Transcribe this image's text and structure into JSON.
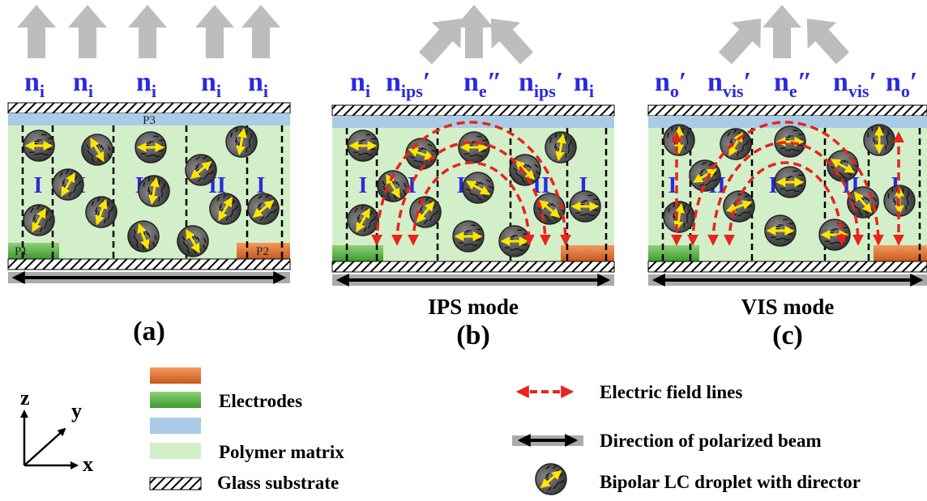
{
  "panels": [
    {
      "indices": [
        {
          "n": "n",
          "sub": "i"
        },
        {
          "n": "n",
          "sub": "i"
        },
        {
          "n": "n",
          "sub": "i"
        },
        {
          "n": "n",
          "sub": "i"
        },
        {
          "n": "n",
          "sub": "i"
        }
      ],
      "regions": [
        "I",
        "II",
        "III",
        "II",
        "I"
      ],
      "labels": [
        "P3",
        "P1",
        "P2"
      ],
      "caption": "(a)"
    },
    {
      "indices": [
        {
          "n": "n",
          "sub": "i"
        },
        {
          "n": "n",
          "sub": "ips",
          "prime": "′"
        },
        {
          "n": "n",
          "sub": "e",
          "prime": "″"
        },
        {
          "n": "n",
          "sub": "ips",
          "prime": "′"
        },
        {
          "n": "n",
          "sub": "i"
        }
      ],
      "regions": [
        "I",
        "II",
        "III",
        "II",
        "I"
      ],
      "mode": "IPS mode",
      "caption": "(b)"
    },
    {
      "indices": [
        {
          "n": "n",
          "sub": "o",
          "prime": "′"
        },
        {
          "n": "n",
          "sub": "vis",
          "prime": "′"
        },
        {
          "n": "n",
          "sub": "e",
          "prime": "″"
        },
        {
          "n": "n",
          "sub": "vis",
          "prime": "′"
        },
        {
          "n": "n",
          "sub": "o",
          "prime": "′"
        }
      ],
      "regions": [
        "I",
        "II",
        "III",
        "II",
        "I"
      ],
      "mode": "VIS mode",
      "caption": "(c)"
    }
  ],
  "legend": {
    "axes": [
      "z",
      "y",
      "x"
    ],
    "electrodes": "Electrodes",
    "polymer": "Polymer matrix",
    "glass": "Glass substrate",
    "field": "Electric field lines",
    "beam": "Direction of polarized beam",
    "droplet": "Bipolar LC droplet with director"
  }
}
